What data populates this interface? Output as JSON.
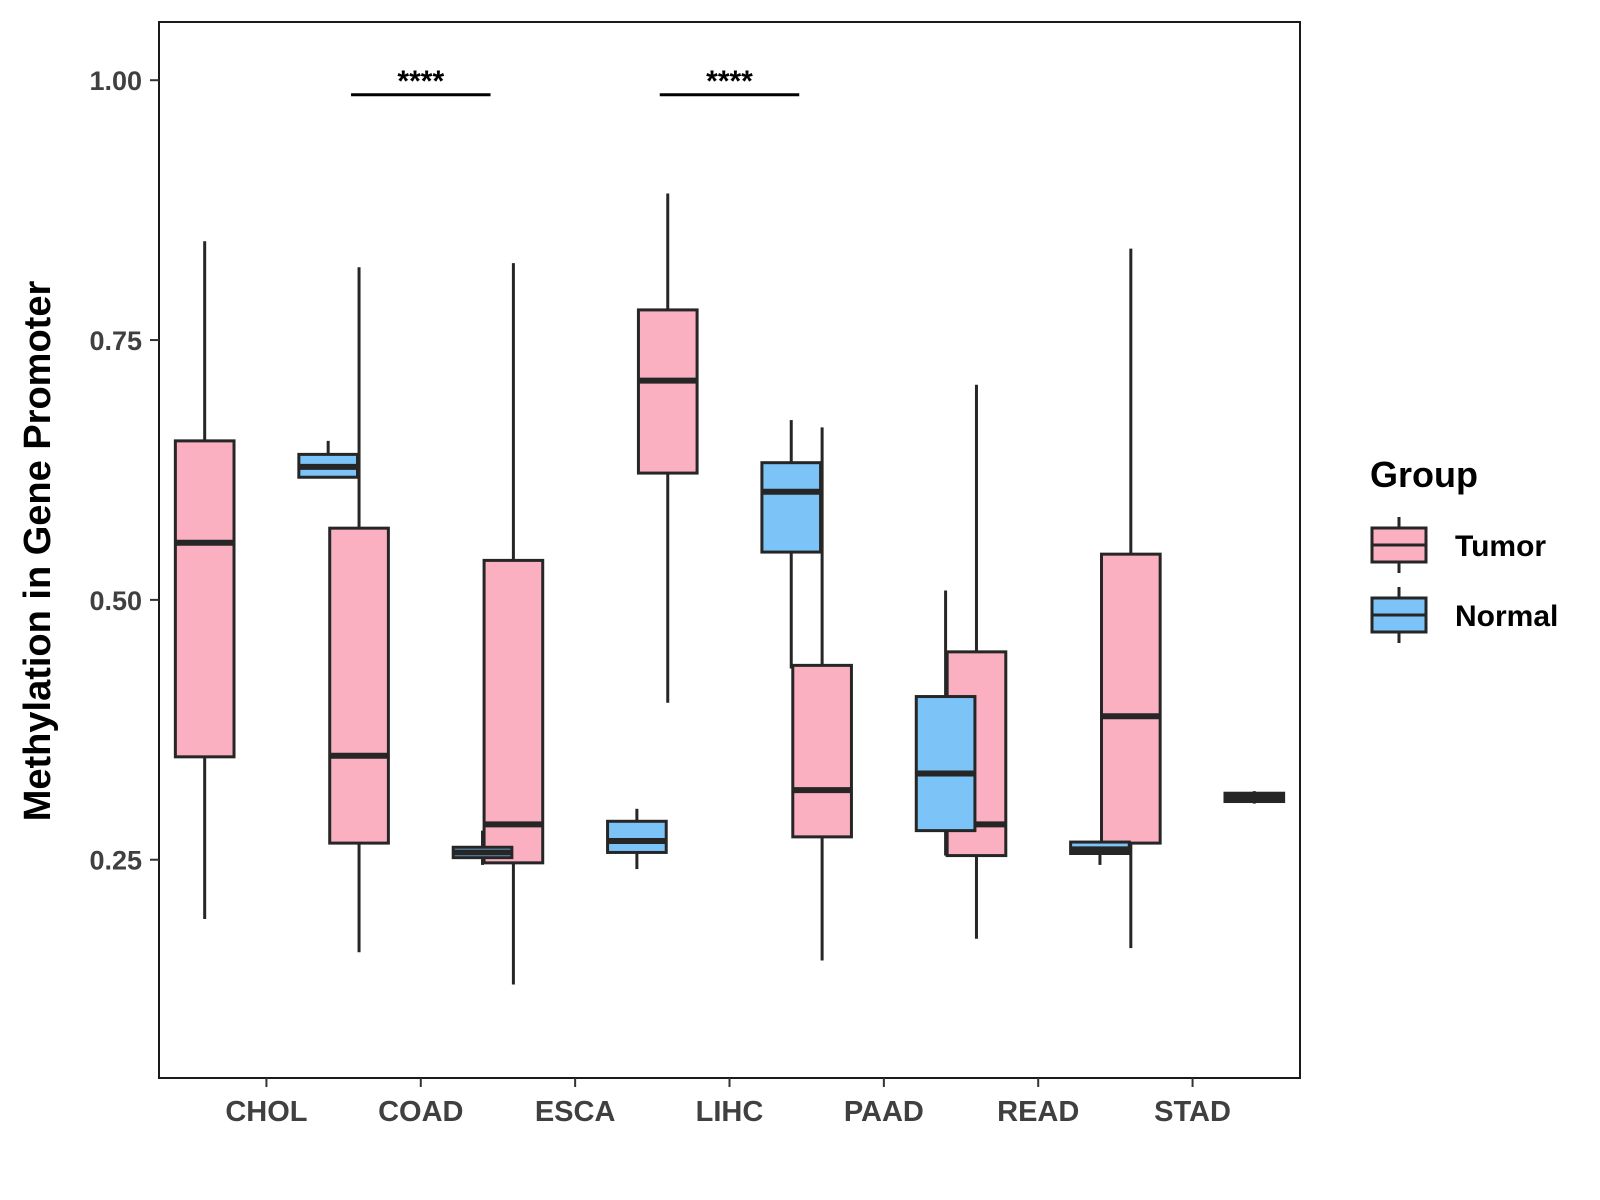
{
  "chart_data": {
    "type": "boxplot",
    "title": "",
    "xlabel": "",
    "ylabel": "Methylation in Gene Promoter",
    "ylim": [
      0.04,
      1.056
    ],
    "yticks": [
      0.25,
      0.5,
      0.75,
      1.0
    ],
    "ytick_labels": [
      "0.25",
      "0.50",
      "0.75",
      "1.00"
    ],
    "categories": [
      "CHOL",
      "COAD",
      "ESCA",
      "LIHC",
      "PAAD",
      "READ",
      "STAD"
    ],
    "legend": {
      "title": "Group",
      "position": "right",
      "entries": [
        {
          "name": "Tumor",
          "color": "#FBB0C2"
        },
        {
          "name": "Normal",
          "color": "#7CC3F7"
        }
      ]
    },
    "series": [
      {
        "name": "Tumor",
        "color": "#FBB0C2",
        "boxes": [
          {
            "category": "CHOL",
            "min": 0.193,
            "q1": 0.349,
            "median": 0.555,
            "q3": 0.653,
            "max": 0.845
          },
          {
            "category": "COAD",
            "min": 0.161,
            "q1": 0.266,
            "median": 0.35,
            "q3": 0.569,
            "max": 0.82
          },
          {
            "category": "ESCA",
            "min": 0.13,
            "q1": 0.247,
            "median": 0.284,
            "q3": 0.538,
            "max": 0.824
          },
          {
            "category": "LIHC",
            "min": 0.401,
            "q1": 0.622,
            "median": 0.711,
            "q3": 0.779,
            "max": 0.891
          },
          {
            "category": "PAAD",
            "min": 0.153,
            "q1": 0.272,
            "median": 0.317,
            "q3": 0.437,
            "max": 0.666
          },
          {
            "category": "READ",
            "min": 0.174,
            "q1": 0.254,
            "median": 0.284,
            "q3": 0.45,
            "max": 0.707
          },
          {
            "category": "STAD",
            "min": 0.165,
            "q1": 0.266,
            "median": 0.388,
            "q3": 0.544,
            "max": 0.838
          }
        ]
      },
      {
        "name": "Normal",
        "color": "#7CC3F7",
        "boxes": [
          {
            "category": "CHOL",
            "min": 0.618,
            "q1": 0.618,
            "median": 0.628,
            "q3": 0.64,
            "max": 0.653
          },
          {
            "category": "COAD",
            "min": 0.245,
            "q1": 0.252,
            "median": 0.257,
            "q3": 0.262,
            "max": 0.278
          },
          {
            "category": "ESCA",
            "min": 0.241,
            "q1": 0.257,
            "median": 0.268,
            "q3": 0.287,
            "max": 0.299
          },
          {
            "category": "LIHC",
            "min": 0.434,
            "q1": 0.546,
            "median": 0.604,
            "q3": 0.632,
            "max": 0.673
          },
          {
            "category": "PAAD",
            "min": 0.254,
            "q1": 0.278,
            "median": 0.333,
            "q3": 0.407,
            "max": 0.509
          },
          {
            "category": "READ",
            "min": 0.245,
            "q1": 0.256,
            "median": 0.26,
            "q3": 0.267,
            "max": 0.267
          },
          {
            "category": "STAD",
            "min": 0.304,
            "q1": 0.306,
            "median": 0.31,
            "q3": 0.314,
            "max": 0.316
          }
        ]
      }
    ],
    "significance": [
      {
        "category": "COAD",
        "label": "****",
        "y": 0.986
      },
      {
        "category": "LIHC",
        "label": "****",
        "y": 0.986
      }
    ]
  }
}
